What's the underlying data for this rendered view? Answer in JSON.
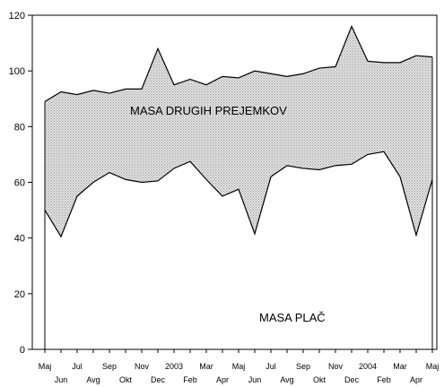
{
  "chart_data": {
    "type": "area",
    "ylim": [
      0,
      120
    ],
    "yticks": [
      0,
      20,
      40,
      60,
      80,
      100,
      120
    ],
    "grid": false,
    "x_upper_labels": [
      "Maj",
      "Jul",
      "Sep",
      "Nov",
      "2003",
      "Mar",
      "Maj",
      "Jul",
      "Sep",
      "Nov",
      "2004",
      "Mar",
      "Maj"
    ],
    "x_lower_labels": [
      "Jun",
      "Avg",
      "Okt",
      "Dec",
      "Feb",
      "Apr",
      "Jun",
      "Avg",
      "Okt",
      "Dec",
      "Feb",
      "Apr"
    ],
    "series": [
      {
        "name": "MASA PLAČ",
        "values": [
          50,
          40.5,
          55,
          60,
          63.5,
          61,
          60,
          60.5,
          65,
          67.5,
          61,
          55,
          57.5,
          41.5,
          62,
          66,
          65,
          64.5,
          66,
          66.5,
          70,
          71,
          62,
          41,
          61
        ]
      },
      {
        "name": "MASA DRUGIH PREJEMKOV",
        "values": [
          89,
          92.5,
          91.5,
          93,
          92,
          93.5,
          93.5,
          108,
          95,
          97,
          95,
          98,
          97.5,
          100,
          99,
          98,
          99,
          101,
          101.5,
          116,
          103.5,
          103,
          103,
          105.5,
          105
        ]
      }
    ],
    "annotations": {
      "upper_area_label": "MASA DRUGIH PREJEMKOV",
      "lower_area_label": "MASA PLAČ"
    },
    "colors": {
      "fill": "#d4d4d4",
      "line": "#000000",
      "axis": "#000000"
    }
  }
}
